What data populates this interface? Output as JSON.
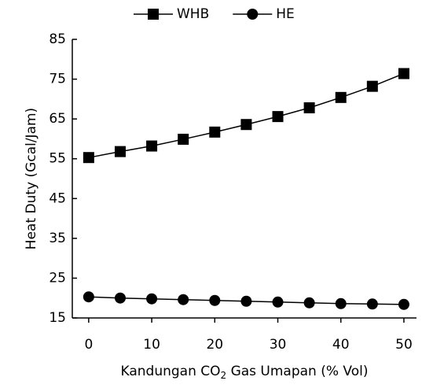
{
  "chart_data": {
    "type": "line",
    "xlabel": [
      "Kandungan CO",
      "2",
      " Gas Umapan (% Vol)"
    ],
    "ylabel": "Heat Duty  (Gcal/Jam)",
    "x": [
      0,
      5,
      10,
      15,
      20,
      25,
      30,
      35,
      40,
      45,
      50
    ],
    "series": [
      {
        "name": "WHB",
        "color": "#000000",
        "marker": "square",
        "values": [
          55.3,
          56.8,
          58.2,
          59.9,
          61.7,
          63.6,
          65.6,
          67.8,
          70.4,
          73.2,
          76.4
        ]
      },
      {
        "name": "HE",
        "color": "#000000",
        "marker": "circle",
        "values": [
          20.3,
          20.0,
          19.8,
          19.6,
          19.4,
          19.2,
          19.0,
          18.8,
          18.6,
          18.5,
          18.4
        ]
      }
    ],
    "xlim": [
      -2.6,
      52
    ],
    "xticks": [
      0,
      10,
      20,
      30,
      40,
      50
    ],
    "ylim": [
      15,
      85
    ],
    "yticks": [
      15,
      25,
      35,
      45,
      55,
      65,
      75,
      85
    ],
    "grid": false,
    "legend": "top"
  }
}
